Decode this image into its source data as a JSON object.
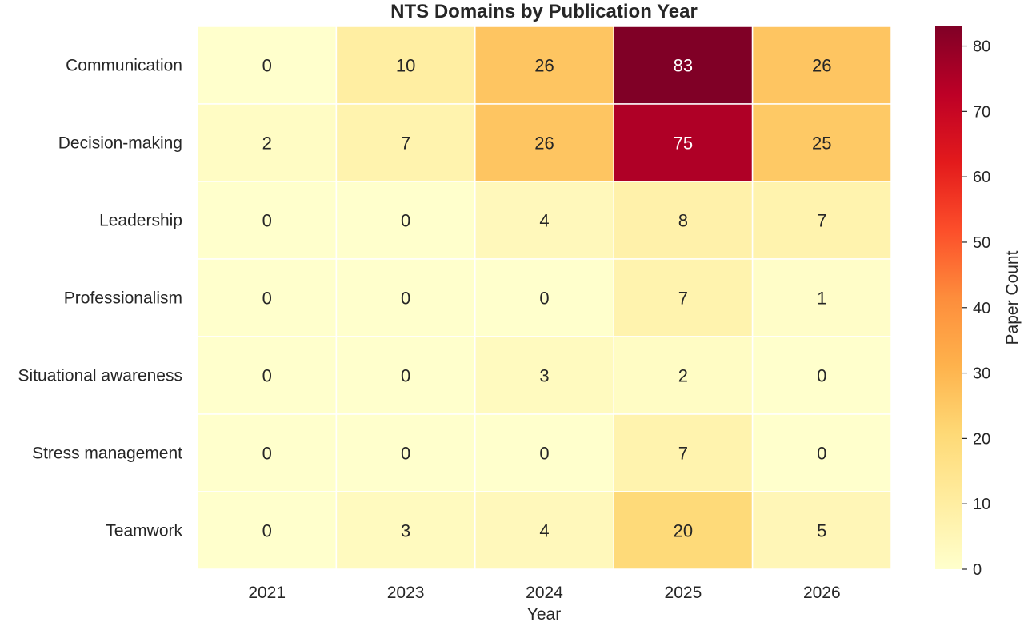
{
  "chart_data": {
    "type": "heatmap",
    "title": "NTS Domains by Publication Year",
    "xlabel": "Year",
    "ylabel": "",
    "x_categories": [
      "2021",
      "2023",
      "2024",
      "2025",
      "2026"
    ],
    "y_categories": [
      "Communication",
      "Decision-making",
      "Leadership",
      "Professionalism",
      "Situational awareness",
      "Stress management",
      "Teamwork"
    ],
    "values": [
      [
        0,
        10,
        26,
        83,
        26
      ],
      [
        2,
        7,
        26,
        75,
        25
      ],
      [
        0,
        0,
        4,
        8,
        7
      ],
      [
        0,
        0,
        0,
        7,
        1
      ],
      [
        0,
        0,
        3,
        2,
        0
      ],
      [
        0,
        0,
        0,
        7,
        0
      ],
      [
        0,
        3,
        4,
        20,
        5
      ]
    ],
    "annotations": true,
    "colorbar": {
      "label": "Paper Count",
      "range": [
        0,
        83
      ],
      "ticks": [
        0,
        10,
        20,
        30,
        40,
        50,
        60,
        70,
        80
      ],
      "colormap": "YlOrRd",
      "position": "right"
    },
    "grid_line_color": "#ffffff"
  }
}
